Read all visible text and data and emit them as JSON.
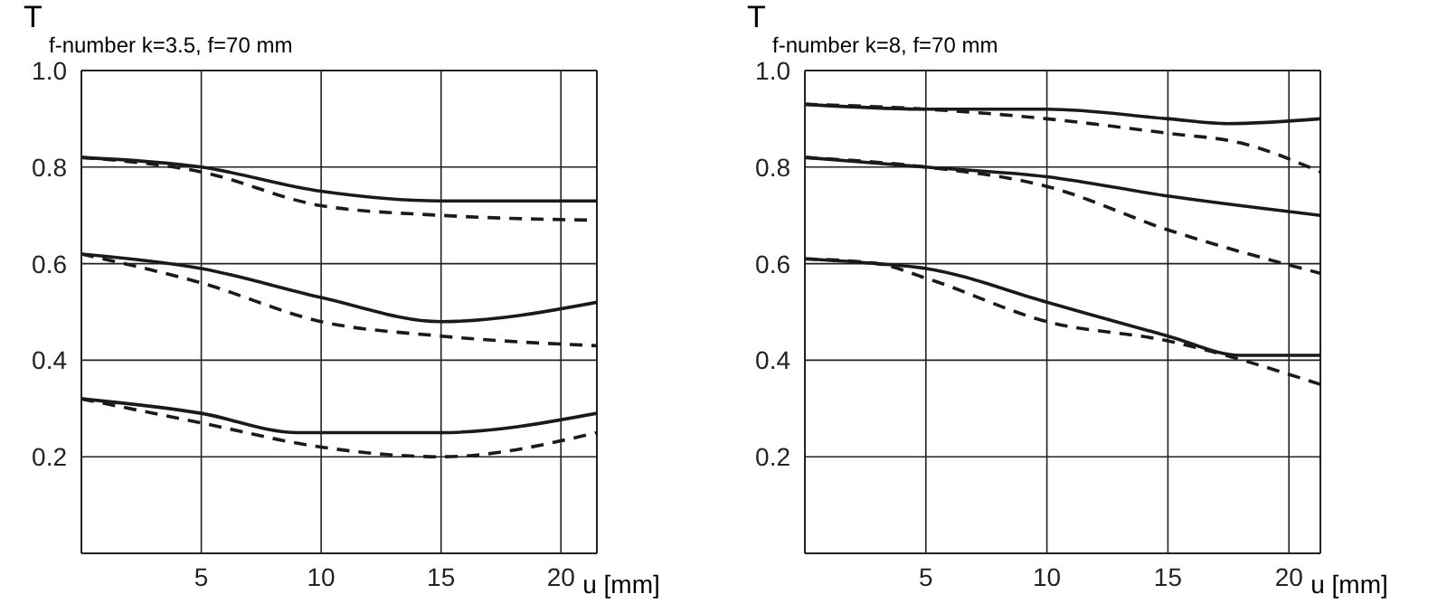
{
  "chart_data": [
    {
      "type": "line",
      "title": "f-number k=3.5, f=70 mm",
      "ylabel": "T",
      "xlabel": "u [mm]",
      "xlim": [
        0,
        21.5
      ],
      "xticks": [
        5,
        10,
        15,
        20
      ],
      "ylim": [
        0,
        1
      ],
      "yticks": [
        0.2,
        0.4,
        0.6,
        0.8,
        {
          "value": 1,
          "label": "1.0"
        }
      ],
      "grid": true,
      "marker": "none",
      "series": [
        {
          "color": "#1a1a1a",
          "line_style": "solid",
          "x": [
            0,
            5,
            10,
            15,
            21.5
          ],
          "values": [
            0.82,
            0.8,
            0.75,
            0.73,
            0.73
          ]
        },
        {
          "color": "#1a1a1a",
          "line_style": "dashed",
          "x": [
            0,
            5,
            10,
            15,
            21.5
          ],
          "values": [
            0.82,
            0.79,
            0.72,
            0.7,
            0.69
          ]
        },
        {
          "color": "#1a1a1a",
          "line_style": "solid",
          "x": [
            0,
            5,
            10,
            15,
            21.5
          ],
          "values": [
            0.62,
            0.59,
            0.53,
            0.48,
            0.52
          ]
        },
        {
          "color": "#1a1a1a",
          "line_style": "dashed",
          "x": [
            0,
            5,
            10,
            15,
            21.5
          ],
          "values": [
            0.62,
            0.56,
            0.48,
            0.45,
            0.43
          ]
        },
        {
          "color": "#1a1a1a",
          "line_style": "solid",
          "x": [
            0,
            5,
            9,
            15,
            21.5
          ],
          "values": [
            0.32,
            0.29,
            0.25,
            0.25,
            0.29
          ]
        },
        {
          "color": "#1a1a1a",
          "line_style": "dashed",
          "x": [
            0,
            5,
            10,
            15,
            21.5
          ],
          "values": [
            0.32,
            0.27,
            0.22,
            0.2,
            0.25
          ]
        }
      ]
    },
    {
      "type": "line",
      "title": "f-number k=8, f=70 mm",
      "ylabel": "T",
      "xlabel": "u [mm]",
      "xlim": [
        0,
        21.3
      ],
      "xticks": [
        5,
        10,
        15,
        20
      ],
      "ylim": [
        0,
        1
      ],
      "yticks": [
        0.2,
        0.4,
        0.6,
        0.8,
        {
          "value": 1,
          "label": "1.0"
        }
      ],
      "grid": true,
      "marker": "none",
      "series": [
        {
          "color": "#1a1a1a",
          "line_style": "solid",
          "x": [
            0,
            5,
            10,
            15,
            17.5,
            21.3
          ],
          "values": [
            0.93,
            0.92,
            0.92,
            0.9,
            0.89,
            0.9
          ]
        },
        {
          "color": "#1a1a1a",
          "line_style": "dashed",
          "x": [
            0,
            5,
            10,
            15,
            18,
            21.3
          ],
          "values": [
            0.93,
            0.92,
            0.9,
            0.87,
            0.85,
            0.79
          ]
        },
        {
          "color": "#1a1a1a",
          "line_style": "solid",
          "x": [
            0,
            5,
            10,
            15,
            21.3
          ],
          "values": [
            0.82,
            0.8,
            0.78,
            0.74,
            0.7
          ]
        },
        {
          "color": "#1a1a1a",
          "line_style": "dashed",
          "x": [
            0,
            5,
            10,
            15,
            21.3
          ],
          "values": [
            0.82,
            0.8,
            0.76,
            0.67,
            0.58
          ]
        },
        {
          "color": "#1a1a1a",
          "line_style": "solid",
          "x": [
            0,
            3,
            5,
            10,
            15,
            18,
            21.3
          ],
          "values": [
            0.61,
            0.6,
            0.59,
            0.52,
            0.45,
            0.41,
            0.41
          ]
        },
        {
          "color": "#1a1a1a",
          "line_style": "dashed",
          "x": [
            0,
            3,
            5,
            10,
            15,
            21.3
          ],
          "values": [
            0.61,
            0.6,
            0.57,
            0.48,
            0.44,
            0.35
          ]
        }
      ]
    }
  ]
}
